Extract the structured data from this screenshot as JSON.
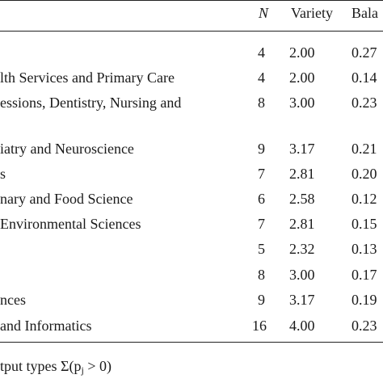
{
  "header": {
    "n": "N",
    "variety": "Variety",
    "balance": "Bala"
  },
  "rows": [
    {
      "label": "",
      "n": "4",
      "variety": "2.00",
      "balance": "0.27"
    },
    {
      "label": "lth Services and Primary Care",
      "n": "4",
      "variety": "2.00",
      "balance": "0.14"
    },
    {
      "label": "essions, Dentistry, Nursing and",
      "n": "8",
      "variety": "3.00",
      "balance": "0.23"
    },
    {
      "label": "iatry and Neuroscience",
      "n": "9",
      "variety": "3.17",
      "balance": "0.21"
    },
    {
      "label": "s",
      "n": "7",
      "variety": "2.81",
      "balance": "0.20"
    },
    {
      "label": "nary and Food Science",
      "n": "6",
      "variety": "2.58",
      "balance": "0.12"
    },
    {
      "label": "Environmental Sciences",
      "n": "7",
      "variety": "2.81",
      "balance": "0.15"
    },
    {
      "label": "",
      "n": "5",
      "variety": "2.32",
      "balance": "0.13"
    },
    {
      "label": "",
      "n": "8",
      "variety": "3.00",
      "balance": "0.17"
    },
    {
      "label": "nces",
      "n": "9",
      "variety": "3.17",
      "balance": "0.19"
    },
    {
      "label": "and Informatics",
      "n": "16",
      "variety": "4.00",
      "balance": "0.23"
    }
  ],
  "footnote": {
    "prefix": "tput types Σ(p",
    "subscript": "j",
    "suffix": " > 0)"
  }
}
